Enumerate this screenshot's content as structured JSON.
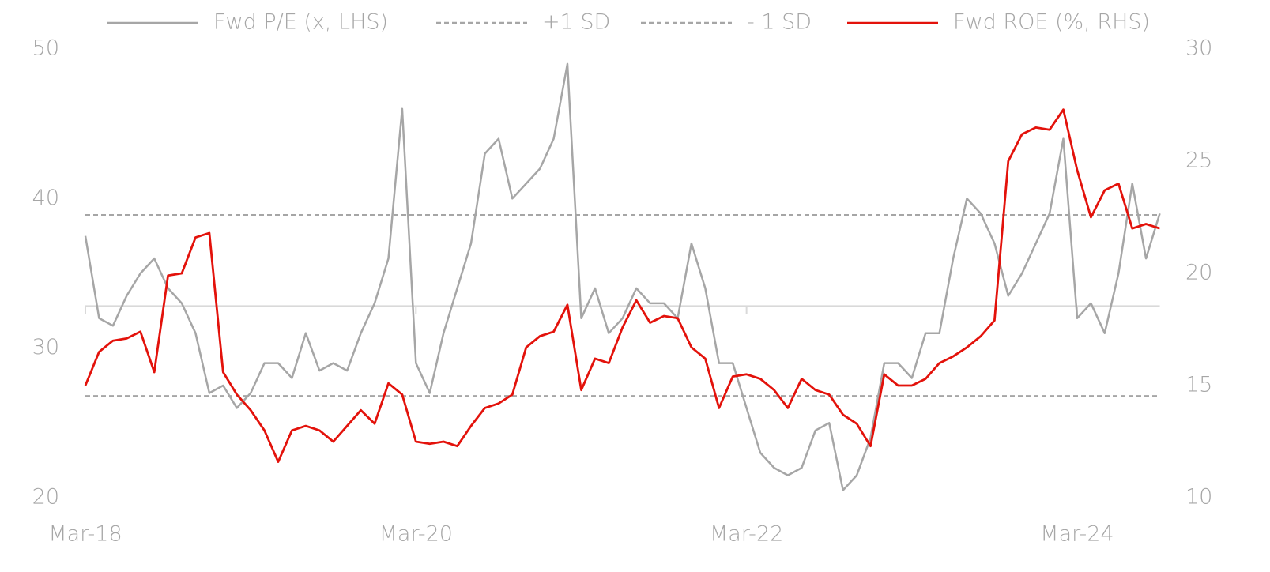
{
  "chart_data": {
    "type": "line",
    "x": [
      "Mar-18",
      "Apr-18",
      "May-18",
      "Jun-18",
      "Jul-18",
      "Aug-18",
      "Sep-18",
      "Oct-18",
      "Nov-18",
      "Dec-18",
      "Jan-19",
      "Feb-19",
      "Mar-19",
      "Apr-19",
      "May-19",
      "Jun-19",
      "Jul-19",
      "Aug-19",
      "Sep-19",
      "Oct-19",
      "Nov-19",
      "Dec-19",
      "Jan-20",
      "Feb-20",
      "Mar-20",
      "Apr-20",
      "May-20",
      "Jun-20",
      "Jul-20",
      "Aug-20",
      "Sep-20",
      "Oct-20",
      "Nov-20",
      "Dec-20",
      "Jan-21",
      "Feb-21",
      "Mar-21",
      "Apr-21",
      "May-21",
      "Jun-21",
      "Jul-21",
      "Aug-21",
      "Sep-21",
      "Oct-21",
      "Nov-21",
      "Dec-21",
      "Jan-22",
      "Feb-22",
      "Mar-22",
      "Apr-22",
      "May-22",
      "Jun-22",
      "Jul-22",
      "Aug-22",
      "Sep-22",
      "Oct-22",
      "Nov-22",
      "Dec-22",
      "Jan-23",
      "Feb-23",
      "Mar-23",
      "Apr-23",
      "May-23",
      "Jun-23",
      "Jul-23",
      "Aug-23",
      "Sep-23",
      "Oct-23",
      "Nov-23",
      "Dec-23",
      "Jan-24",
      "Feb-24",
      "Mar-24",
      "Apr-24",
      "May-24",
      "Jun-24",
      "Jul-24",
      "Aug-24",
      "Sep-24"
    ],
    "xticks": [
      "Mar-18",
      "Mar-20",
      "Mar-22",
      "Mar-24"
    ],
    "ylim": [
      20,
      50
    ],
    "yticks": [
      20,
      30,
      40,
      50
    ],
    "y2lim": [
      10,
      30
    ],
    "y2ticks": [
      10,
      15,
      20,
      25,
      30
    ],
    "mean": 32.8,
    "series": [
      {
        "name": "Fwd P/E (x, LHS)",
        "color": "#a6a6a6",
        "dash": false,
        "values": [
          37.5,
          32,
          31.5,
          33.5,
          35,
          36,
          34,
          33,
          31,
          27,
          27.5,
          26,
          27,
          29,
          29,
          28,
          31,
          28.5,
          29,
          28.5,
          31,
          33,
          36,
          46,
          29,
          27,
          31,
          34,
          37,
          43,
          44,
          40,
          41,
          42,
          44,
          49,
          32,
          34,
          31,
          32,
          34,
          33,
          33,
          32,
          37,
          34,
          29,
          29,
          26,
          23,
          22,
          21.5,
          22,
          24.5,
          25,
          20.5,
          21.5,
          24,
          29,
          29,
          28,
          31,
          31,
          36,
          40,
          39,
          37,
          33.5,
          35,
          37,
          39,
          44,
          32,
          33,
          31,
          35,
          41,
          36,
          39
        ]
      },
      {
        "name": "+1 SD",
        "color": "#a6a6a6",
        "dash": true,
        "value": 38.9
      },
      {
        "name": "- 1 SD",
        "color": "#a6a6a6",
        "dash": true,
        "value": 26.8
      },
      {
        "name": "Fwd ROE (%, RHS)",
        "color": "#e3120b",
        "dash": false,
        "axis": "y2",
        "values": [
          15,
          16.5,
          17,
          17.1,
          17.4,
          15.6,
          19.9,
          20,
          21.6,
          21.8,
          15.6,
          14.6,
          13.9,
          13,
          11.6,
          13,
          13.2,
          13,
          12.5,
          13.2,
          13.9,
          13.3,
          15.1,
          14.6,
          12.5,
          12.4,
          12.5,
          12.3,
          13.2,
          14,
          14.2,
          14.6,
          16.7,
          17.2,
          17.4,
          18.6,
          14.8,
          16.2,
          16,
          17.6,
          18.8,
          17.8,
          18.1,
          18,
          16.7,
          16.2,
          14,
          15.4,
          15.5,
          15.3,
          14.8,
          14,
          15.3,
          14.8,
          14.6,
          13.7,
          13.3,
          12.3,
          15.5,
          15,
          15,
          15.3,
          16,
          16.3,
          16.7,
          17.2,
          17.9,
          25,
          26.2,
          26.5,
          26.4,
          27.3,
          24.6,
          22.5,
          23.7,
          24,
          22,
          22.2,
          22
        ]
      }
    ]
  }
}
